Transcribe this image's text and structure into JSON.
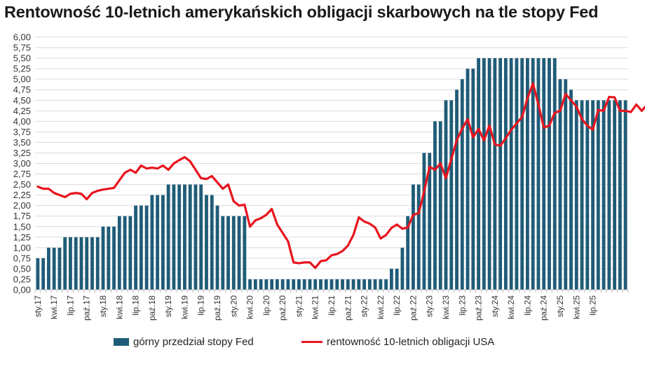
{
  "chart_data": {
    "type": "bar",
    "title": "Rentowność 10-letnich amerykańskich obligacji skarbowych na tle stopy Fed",
    "ylim": [
      0,
      6
    ],
    "y_ticks": [
      "0,00",
      "0,25",
      "0,50",
      "0,75",
      "1,00",
      "1,25",
      "1,50",
      "1,75",
      "2,00",
      "2,25",
      "2,50",
      "2,75",
      "3,00",
      "3,25",
      "3,50",
      "3,75",
      "4,00",
      "4,25",
      "4,50",
      "4,75",
      "5,00",
      "5,25",
      "5,50",
      "5,75",
      "6,00"
    ],
    "x_tick_labels": [
      "sty.17",
      "kwi.17",
      "lip.17",
      "paź.17",
      "sty.18",
      "kwi.18",
      "lip.18",
      "paź.18",
      "sty.19",
      "kwi.19",
      "lip.19",
      "paź.19",
      "sty.20",
      "kwi.20",
      "lip.20",
      "paź.20",
      "sty.21",
      "kwi.21",
      "lip.21",
      "paź.21",
      "sty.22",
      "kwi.22",
      "lip.22",
      "paź.22",
      "sty.23",
      "kwi.23",
      "lip.23",
      "paź.23",
      "sty.24",
      "kwi.24",
      "lip.24",
      "paź.24",
      "sty.25",
      "kwi.25",
      "lip.25"
    ],
    "grid": true,
    "legend_position": "bottom",
    "series": [
      {
        "name": "górny przedział stopy Fed",
        "kind": "bar",
        "color": "#1f5c78",
        "values": [
          0.75,
          0.75,
          1.0,
          1.0,
          1.0,
          1.25,
          1.25,
          1.25,
          1.25,
          1.25,
          1.25,
          1.25,
          1.5,
          1.5,
          1.5,
          1.75,
          1.75,
          1.75,
          2.0,
          2.0,
          2.0,
          2.25,
          2.25,
          2.25,
          2.5,
          2.5,
          2.5,
          2.5,
          2.5,
          2.5,
          2.5,
          2.25,
          2.25,
          2.0,
          1.75,
          1.75,
          1.75,
          1.75,
          1.75,
          0.25,
          0.25,
          0.25,
          0.25,
          0.25,
          0.25,
          0.25,
          0.25,
          0.25,
          0.25,
          0.25,
          0.25,
          0.25,
          0.25,
          0.25,
          0.25,
          0.25,
          0.25,
          0.25,
          0.25,
          0.25,
          0.25,
          0.25,
          0.25,
          0.25,
          0.25,
          0.5,
          0.5,
          1.0,
          1.75,
          2.5,
          2.5,
          3.25,
          3.25,
          4.0,
          4.0,
          4.5,
          4.5,
          4.75,
          5.0,
          5.25,
          5.25,
          5.5,
          5.5,
          5.5,
          5.5,
          5.5,
          5.5,
          5.5,
          5.5,
          5.5,
          5.5,
          5.5,
          5.5,
          5.5,
          5.5,
          5.5,
          5.0,
          5.0,
          4.75,
          4.5,
          4.5,
          4.5,
          4.5,
          4.5,
          4.5,
          4.5,
          4.5,
          4.5,
          4.5
        ]
      },
      {
        "name": "rentowność 10-letnich obligacji USA",
        "kind": "line",
        "color": "#e8141e",
        "values": [
          2.45,
          2.4,
          2.4,
          2.3,
          2.25,
          2.2,
          2.28,
          2.3,
          2.28,
          2.15,
          2.3,
          2.35,
          2.38,
          2.4,
          2.42,
          2.6,
          2.78,
          2.85,
          2.78,
          2.95,
          2.88,
          2.9,
          2.88,
          2.95,
          2.85,
          3.0,
          3.08,
          3.15,
          3.05,
          2.85,
          2.65,
          2.63,
          2.7,
          2.55,
          2.4,
          2.5,
          2.1,
          2.0,
          2.02,
          1.5,
          1.65,
          1.7,
          1.78,
          1.92,
          1.55,
          1.35,
          1.15,
          0.65,
          0.63,
          0.65,
          0.65,
          0.52,
          0.68,
          0.7,
          0.82,
          0.85,
          0.92,
          1.05,
          1.3,
          1.72,
          1.62,
          1.57,
          1.48,
          1.22,
          1.3,
          1.47,
          1.55,
          1.45,
          1.48,
          1.78,
          1.82,
          2.33,
          2.92,
          2.85,
          3.0,
          2.65,
          3.1,
          3.55,
          3.83,
          4.05,
          3.62,
          3.82,
          3.55,
          3.9,
          3.45,
          3.42,
          3.6,
          3.8,
          3.95,
          4.1,
          4.55,
          4.9,
          4.4,
          3.85,
          3.9,
          4.2,
          4.25,
          4.65,
          4.5,
          4.35,
          4.05,
          3.9,
          3.8,
          4.27,
          4.25,
          4.58,
          4.57,
          4.25,
          4.25,
          4.22,
          4.4,
          4.25,
          4.4
        ]
      }
    ]
  }
}
